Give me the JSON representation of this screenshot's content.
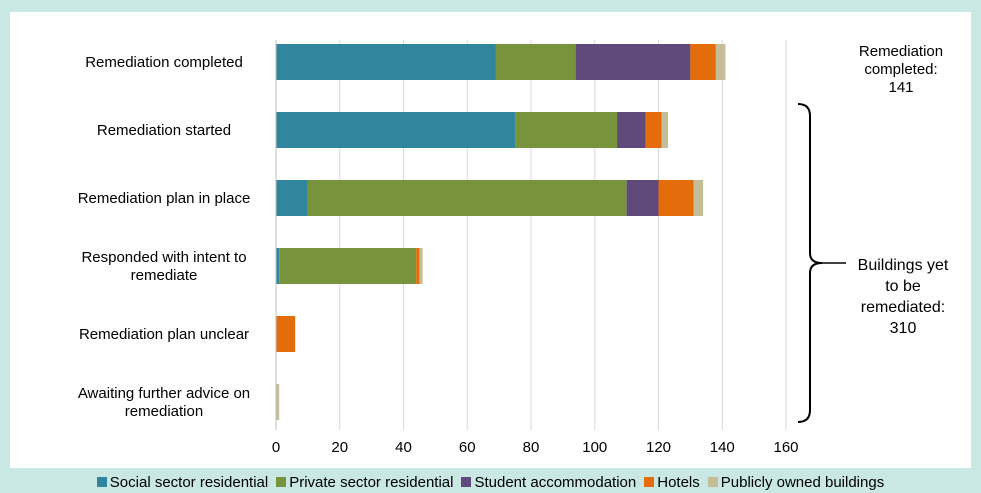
{
  "chart_data": {
    "type": "bar",
    "orientation": "horizontal",
    "stacked": true,
    "categories": [
      [
        "Remediation completed"
      ],
      [
        "Remediation started"
      ],
      [
        "Remediation plan in place"
      ],
      [
        "Responded with intent to",
        "remediate"
      ],
      [
        "Remediation plan unclear"
      ],
      [
        "Awaiting further advice on",
        "remediation"
      ]
    ],
    "series": [
      {
        "name": "Social sector residential",
        "color": "#31859c",
        "values": [
          69,
          75,
          10,
          1,
          0,
          0
        ]
      },
      {
        "name": "Private sector residential",
        "color": "#77933c",
        "values": [
          25,
          32,
          100,
          43,
          0,
          0
        ]
      },
      {
        "name": "Student accommodation",
        "color": "#604a7b",
        "values": [
          36,
          9,
          10,
          0,
          0,
          0
        ]
      },
      {
        "name": "Hotels",
        "color": "#e46c0a",
        "values": [
          8,
          5,
          11,
          1,
          6,
          0
        ]
      },
      {
        "name": "Publicly owned buildings",
        "color": "#c4bd97",
        "values": [
          3,
          2,
          3,
          1,
          0,
          1
        ]
      }
    ],
    "xlim": [
      0,
      160
    ],
    "xticks": [
      0,
      20,
      40,
      60,
      80,
      100,
      120,
      140,
      160
    ],
    "gridlines": "vertical",
    "legend": "bottom",
    "annotations": {
      "completed": [
        "Remediation",
        "completed:",
        "141"
      ],
      "yet_to_be": [
        "Buildings yet",
        "to be",
        "remediated:",
        "310"
      ]
    }
  }
}
